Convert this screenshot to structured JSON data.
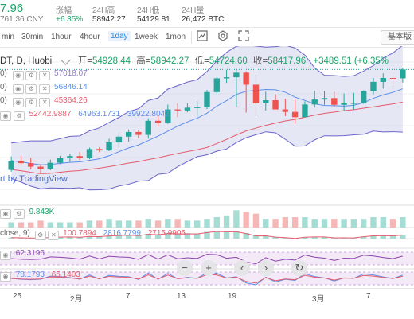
{
  "header": {
    "price": "7.96",
    "cny": "761.36 CNY",
    "stats": [
      {
        "label": "涨幅",
        "value": "+6.35%"
      },
      {
        "label": "24H高",
        "value": "58942.27"
      },
      {
        "label": "24H低",
        "value": "54129.81"
      },
      {
        "label": "24H量",
        "value": "26,472 BTC"
      }
    ]
  },
  "toolbar": {
    "timeframes": [
      "min",
      "30min",
      "1hour",
      "4hour",
      "1day",
      "1week",
      "1mon"
    ],
    "active_timeframe": "1day",
    "basic_label": "基本版",
    "icons": [
      "indicator-icon",
      "settings-icon",
      "fullscreen-icon"
    ]
  },
  "chart": {
    "symbol": "DT, D, Huobi",
    "ohlc": {
      "open_label": "开=",
      "open": "54928.44",
      "high_label": "高=",
      "high": "58942.27",
      "low_label": "低=",
      "low": "54724.60",
      "close_label": "收=",
      "close": "58417.96",
      "change": "+3489.51 (+6.35%"
    },
    "bb_label": "0)",
    "bb_value": "57018.07",
    "ma_rows": [
      {
        "prefix": "0)",
        "value": "56846.14"
      },
      {
        "prefix": "0)",
        "value": "45364.26"
      }
    ],
    "vals_row": [
      "52442.9887",
      "64963.1731",
      "39922.8042"
    ],
    "watermark": "rt by TradingView",
    "volume_label": "9.843K",
    "macd_prefix": "close, 9)",
    "macd_values": [
      "100.7894",
      "2816.7799",
      "2715.9905"
    ],
    "rsi_value": "62.3196",
    "kdj_values": [
      "78.1793",
      "65.1403"
    ],
    "x_labels": [
      "25",
      "2月",
      "7",
      "13",
      "19",
      "3月",
      "7"
    ],
    "nav_icons": [
      "zoom-out-icon",
      "zoom-in-icon",
      "scroll-left-icon",
      "scroll-right-icon",
      "reset-icon"
    ],
    "colors": {
      "up": "#26a69a",
      "down": "#ef5350",
      "bb_fill": "#c5cae9",
      "ma1": "#5c8ee8",
      "ma2": "#e55c6c"
    }
  },
  "chart_data": {
    "type": "candlestick",
    "xlabel": "",
    "ylabel": "",
    "candles": [
      {
        "o": 30000,
        "h": 33800,
        "l": 29500,
        "c": 32600
      },
      {
        "o": 32600,
        "h": 34000,
        "l": 31400,
        "c": 31900
      },
      {
        "o": 31900,
        "h": 33400,
        "l": 30200,
        "c": 30900
      },
      {
        "o": 30900,
        "h": 31600,
        "l": 28900,
        "c": 30300
      },
      {
        "o": 30300,
        "h": 32900,
        "l": 29900,
        "c": 32000
      },
      {
        "o": 32000,
        "h": 34000,
        "l": 31600,
        "c": 33300
      },
      {
        "o": 33300,
        "h": 34600,
        "l": 32300,
        "c": 33900
      },
      {
        "o": 33900,
        "h": 35000,
        "l": 32800,
        "c": 33300
      },
      {
        "o": 33300,
        "h": 36300,
        "l": 33000,
        "c": 35900
      },
      {
        "o": 35900,
        "h": 36400,
        "l": 35000,
        "c": 35500
      },
      {
        "o": 35500,
        "h": 38800,
        "l": 35300,
        "c": 37800
      },
      {
        "o": 37800,
        "h": 40300,
        "l": 36300,
        "c": 39400
      },
      {
        "o": 39400,
        "h": 41400,
        "l": 38000,
        "c": 40700
      },
      {
        "o": 40700,
        "h": 41200,
        "l": 38900,
        "c": 39900
      },
      {
        "o": 39900,
        "h": 44600,
        "l": 38800,
        "c": 43900
      },
      {
        "o": 43900,
        "h": 45300,
        "l": 42200,
        "c": 43300
      },
      {
        "o": 43300,
        "h": 48500,
        "l": 43000,
        "c": 47100
      },
      {
        "o": 47100,
        "h": 48800,
        "l": 44900,
        "c": 46800
      },
      {
        "o": 46800,
        "h": 48800,
        "l": 46300,
        "c": 47600
      },
      {
        "o": 47600,
        "h": 49400,
        "l": 45100,
        "c": 47700
      },
      {
        "o": 47700,
        "h": 52600,
        "l": 47200,
        "c": 52000
      },
      {
        "o": 52000,
        "h": 56200,
        "l": 51600,
        "c": 55900
      },
      {
        "o": 55900,
        "h": 58300,
        "l": 54600,
        "c": 56200
      },
      {
        "o": 56200,
        "h": 58400,
        "l": 47900,
        "c": 57500
      },
      {
        "o": 57500,
        "h": 57900,
        "l": 46200,
        "c": 54100
      },
      {
        "o": 54100,
        "h": 57000,
        "l": 45200,
        "c": 48800
      },
      {
        "o": 48800,
        "h": 52100,
        "l": 46800,
        "c": 49700
      },
      {
        "o": 49700,
        "h": 51400,
        "l": 47100,
        "c": 47100
      },
      {
        "o": 47100,
        "h": 50100,
        "l": 45200,
        "c": 46400
      },
      {
        "o": 46400,
        "h": 49800,
        "l": 43000,
        "c": 44900
      },
      {
        "o": 44900,
        "h": 49400,
        "l": 44900,
        "c": 48500
      },
      {
        "o": 48500,
        "h": 52400,
        "l": 47600,
        "c": 49900
      },
      {
        "o": 49900,
        "h": 52300,
        "l": 48400,
        "c": 50300
      },
      {
        "o": 50300,
        "h": 52100,
        "l": 47900,
        "c": 48400
      },
      {
        "o": 48400,
        "h": 51600,
        "l": 46700,
        "c": 48800
      },
      {
        "o": 48800,
        "h": 51800,
        "l": 47100,
        "c": 48900
      },
      {
        "o": 48900,
        "h": 52500,
        "l": 48700,
        "c": 52300
      },
      {
        "o": 52300,
        "h": 56000,
        "l": 51400,
        "c": 54900
      },
      {
        "o": 54900,
        "h": 57300,
        "l": 53000,
        "c": 56000
      },
      {
        "o": 56000,
        "h": 56800,
        "l": 53400,
        "c": 55900
      },
      {
        "o": 55900,
        "h": 58900,
        "l": 54700,
        "c": 58400
      }
    ],
    "ylim": [
      20000,
      65000
    ],
    "volume": [
      3,
      3,
      3,
      4,
      3,
      3,
      3,
      3,
      4,
      4,
      5,
      4,
      4,
      4,
      5,
      4,
      5,
      5,
      4,
      4,
      5,
      6,
      7,
      10,
      9,
      8,
      5,
      5,
      6,
      6,
      6,
      5,
      5,
      5,
      5,
      5,
      5,
      6,
      6,
      5,
      6
    ],
    "volume_max": 12
  }
}
